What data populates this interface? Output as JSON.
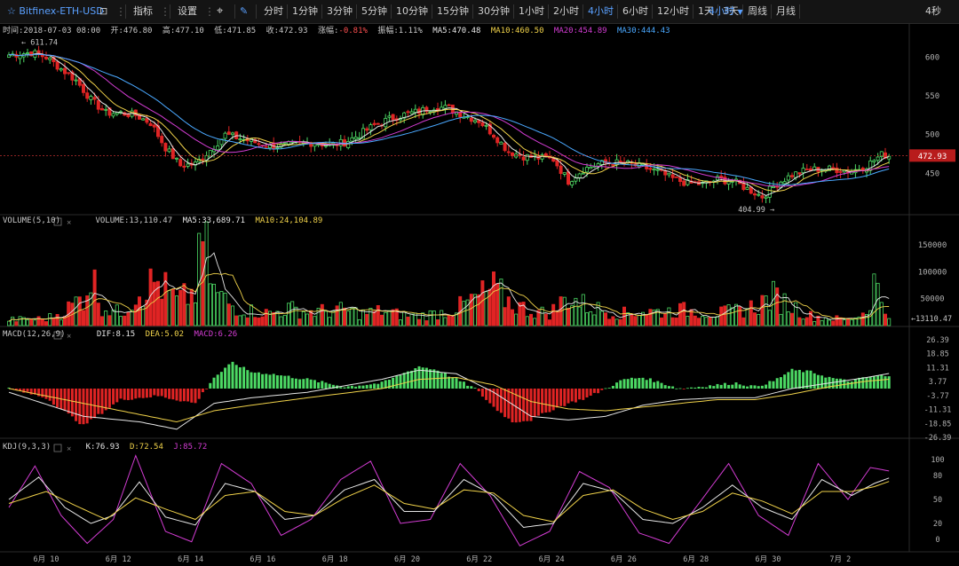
{
  "toolbar": {
    "symbol": "Bitfinex-ETH-USD",
    "indicators_label": "指标",
    "settings_label": "设置",
    "intervals": [
      "分时",
      "1分钟",
      "3分钟",
      "5分钟",
      "10分钟",
      "15分钟",
      "30分钟",
      "1小时",
      "2小时",
      "4小时",
      "6小时",
      "12小时",
      "1天",
      "3天",
      "周线",
      "月线"
    ],
    "active_interval": "4小时",
    "interval_dropdown": "4小时",
    "refresh": "4秒",
    "colors": {
      "active": "#5aa0ff",
      "bg": "#141414"
    }
  },
  "info_bar": {
    "time": "时间:2018-07-03 08:00",
    "open": "开:476.80",
    "high": "高:477.10",
    "low": "低:471.85",
    "close": "收:472.93",
    "change_label": "涨幅:",
    "change_value": "-0.81%",
    "amplitude": "振幅:1.11%",
    "ma5": "MA5:470.48",
    "ma10": "MA10:460.50",
    "ma20": "MA20:454.89",
    "ma30": "MA30:444.43"
  },
  "volume_bar": {
    "title": "VOLUME(5,10)",
    "volume": "VOLUME:13,110.47",
    "ma5": "MA5:33,689.71",
    "ma10": "MA10:24,104.89"
  },
  "macd_bar": {
    "title": "MACD(12,26,9)",
    "dif": "DIF:8.15",
    "dea": "DEA:5.02",
    "macd": "MACD:6.26"
  },
  "kdj_bar": {
    "title": "KDJ(9,3,3)",
    "k": "K:76.93",
    "d": "D:72.54",
    "j": "J:85.72"
  },
  "chart_data": {
    "type": "candlestick",
    "instrument": "Bitfinex-ETH-USD",
    "interval": "4小时",
    "x_ticks": [
      "6月 10",
      "6月 12",
      "6月 14",
      "6月 16",
      "6月 18",
      "6月 20",
      "6月 22",
      "6月 24",
      "6月 26",
      "6月 28",
      "6月 30",
      "7月 2"
    ],
    "price_axis": [
      600,
      550,
      500,
      450
    ],
    "price_ylim": [
      400,
      620
    ],
    "last_price": "472.93",
    "annotations": {
      "high": "611.74",
      "low": "404.99"
    },
    "volume_axis": [
      "150000",
      "100000",
      "50000"
    ],
    "volume_ylim": [
      0,
      185000
    ],
    "volume_last": "13110.47",
    "macd_axis": [
      "26.39",
      "18.85",
      "11.31",
      "3.77",
      "-3.77",
      "-11.31",
      "-18.85",
      "-26.39"
    ],
    "macd_ylim": [
      -26.39,
      26.39
    ],
    "kdj_axis": [
      100,
      80,
      50,
      20,
      0
    ],
    "kdj_ylim": [
      -10,
      110
    ],
    "close_anchors": [
      [
        0,
        603
      ],
      [
        6,
        606
      ],
      [
        10,
        600
      ],
      [
        14,
        585
      ],
      [
        18,
        570
      ],
      [
        22,
        545
      ],
      [
        26,
        528
      ],
      [
        30,
        528
      ],
      [
        34,
        525
      ],
      [
        38,
        515
      ],
      [
        42,
        483
      ],
      [
        46,
        460
      ],
      [
        50,
        462
      ],
      [
        54,
        480
      ],
      [
        58,
        500
      ],
      [
        62,
        495
      ],
      [
        66,
        490
      ],
      [
        70,
        485
      ],
      [
        74,
        486
      ],
      [
        78,
        488
      ],
      [
        82,
        490
      ],
      [
        86,
        486
      ],
      [
        90,
        490
      ],
      [
        94,
        500
      ],
      [
        98,
        512
      ],
      [
        102,
        520
      ],
      [
        106,
        526
      ],
      [
        110,
        530
      ],
      [
        114,
        536
      ],
      [
        118,
        534
      ],
      [
        122,
        525
      ],
      [
        126,
        518
      ],
      [
        130,
        500
      ],
      [
        134,
        478
      ],
      [
        138,
        472
      ],
      [
        142,
        470
      ],
      [
        146,
        468
      ],
      [
        150,
        440
      ],
      [
        154,
        455
      ],
      [
        158,
        462
      ],
      [
        162,
        464
      ],
      [
        166,
        462
      ],
      [
        170,
        458
      ],
      [
        174,
        452
      ],
      [
        178,
        443
      ],
      [
        182,
        437
      ],
      [
        186,
        436
      ],
      [
        190,
        442
      ],
      [
        194,
        440
      ],
      [
        198,
        430
      ],
      [
        202,
        420
      ],
      [
        206,
        437
      ],
      [
        210,
        448
      ],
      [
        214,
        454
      ],
      [
        218,
        456
      ],
      [
        222,
        455
      ],
      [
        226,
        453
      ],
      [
        230,
        460
      ],
      [
        234,
        474
      ],
      [
        236,
        473
      ]
    ],
    "volume_anchors": [
      [
        0,
        12000
      ],
      [
        10,
        14000
      ],
      [
        15,
        30000
      ],
      [
        20,
        60000
      ],
      [
        22,
        105000
      ],
      [
        25,
        40000
      ],
      [
        30,
        25000
      ],
      [
        35,
        75000
      ],
      [
        40,
        90000
      ],
      [
        45,
        50000
      ],
      [
        50,
        68000
      ],
      [
        52,
        180000
      ],
      [
        55,
        70000
      ],
      [
        60,
        40000
      ],
      [
        65,
        30000
      ],
      [
        70,
        25000
      ],
      [
        75,
        35000
      ],
      [
        80,
        28000
      ],
      [
        85,
        30000
      ],
      [
        90,
        32000
      ],
      [
        95,
        25000
      ],
      [
        100,
        30000
      ],
      [
        105,
        22000
      ],
      [
        110,
        20000
      ],
      [
        115,
        25000
      ],
      [
        120,
        35000
      ],
      [
        125,
        55000
      ],
      [
        130,
        75000
      ],
      [
        135,
        45000
      ],
      [
        140,
        30000
      ],
      [
        145,
        25000
      ],
      [
        150,
        60000
      ],
      [
        155,
        40000
      ],
      [
        160,
        30000
      ],
      [
        165,
        25000
      ],
      [
        170,
        30000
      ],
      [
        175,
        28000
      ],
      [
        180,
        32000
      ],
      [
        185,
        30000
      ],
      [
        190,
        25000
      ],
      [
        195,
        30000
      ],
      [
        200,
        40000
      ],
      [
        205,
        60000
      ],
      [
        210,
        40000
      ],
      [
        215,
        20000
      ],
      [
        220,
        15000
      ],
      [
        225,
        12000
      ],
      [
        230,
        30000
      ],
      [
        232,
        90000
      ],
      [
        236,
        13000
      ]
    ],
    "macd_anchors": [
      [
        0,
        0
      ],
      [
        10,
        -5
      ],
      [
        20,
        -20
      ],
      [
        30,
        -6
      ],
      [
        40,
        -4
      ],
      [
        50,
        -8
      ],
      [
        55,
        6
      ],
      [
        60,
        14
      ],
      [
        65,
        9
      ],
      [
        70,
        8
      ],
      [
        80,
        5
      ],
      [
        90,
        1
      ],
      [
        100,
        3
      ],
      [
        110,
        12
      ],
      [
        115,
        10
      ],
      [
        120,
        5
      ],
      [
        125,
        0
      ],
      [
        130,
        -10
      ],
      [
        135,
        -18
      ],
      [
        140,
        -17
      ],
      [
        145,
        -12
      ],
      [
        150,
        -8
      ],
      [
        155,
        -5
      ],
      [
        160,
        0
      ],
      [
        165,
        5
      ],
      [
        170,
        6
      ],
      [
        175,
        3
      ],
      [
        180,
        0
      ],
      [
        185,
        1
      ],
      [
        190,
        2
      ],
      [
        195,
        3
      ],
      [
        200,
        1
      ],
      [
        205,
        4
      ],
      [
        210,
        10
      ],
      [
        215,
        9
      ],
      [
        220,
        6
      ],
      [
        225,
        4
      ],
      [
        230,
        6
      ],
      [
        234,
        7
      ],
      [
        236,
        6.26
      ]
    ],
    "dif_anchors": [
      [
        0,
        -2
      ],
      [
        20,
        -15
      ],
      [
        35,
        -18
      ],
      [
        45,
        -22
      ],
      [
        55,
        -8
      ],
      [
        65,
        -5
      ],
      [
        80,
        -2
      ],
      [
        100,
        5
      ],
      [
        110,
        10
      ],
      [
        120,
        8
      ],
      [
        130,
        -2
      ],
      [
        140,
        -15
      ],
      [
        150,
        -17
      ],
      [
        160,
        -15
      ],
      [
        170,
        -9
      ],
      [
        180,
        -6
      ],
      [
        190,
        -5
      ],
      [
        200,
        -5
      ],
      [
        210,
        0
      ],
      [
        220,
        3
      ],
      [
        230,
        6
      ],
      [
        236,
        8.15
      ]
    ],
    "dea_anchors": [
      [
        0,
        0
      ],
      [
        20,
        -8
      ],
      [
        35,
        -14
      ],
      [
        45,
        -18
      ],
      [
        55,
        -12
      ],
      [
        65,
        -9
      ],
      [
        80,
        -5
      ],
      [
        100,
        0
      ],
      [
        110,
        5
      ],
      [
        120,
        6
      ],
      [
        130,
        2
      ],
      [
        140,
        -7
      ],
      [
        150,
        -11
      ],
      [
        160,
        -12
      ],
      [
        170,
        -10
      ],
      [
        180,
        -8
      ],
      [
        190,
        -6
      ],
      [
        200,
        -6
      ],
      [
        210,
        -3
      ],
      [
        220,
        1
      ],
      [
        230,
        4
      ],
      [
        236,
        5.02
      ]
    ],
    "kdj_k_anchors": [
      [
        0,
        50
      ],
      [
        8,
        78
      ],
      [
        15,
        40
      ],
      [
        22,
        20
      ],
      [
        28,
        30
      ],
      [
        35,
        72
      ],
      [
        42,
        28
      ],
      [
        50,
        18
      ],
      [
        58,
        70
      ],
      [
        66,
        60
      ],
      [
        74,
        25
      ],
      [
        82,
        30
      ],
      [
        90,
        62
      ],
      [
        98,
        75
      ],
      [
        106,
        35
      ],
      [
        114,
        35
      ],
      [
        122,
        75
      ],
      [
        130,
        55
      ],
      [
        138,
        15
      ],
      [
        146,
        20
      ],
      [
        154,
        70
      ],
      [
        162,
        60
      ],
      [
        170,
        25
      ],
      [
        178,
        20
      ],
      [
        186,
        40
      ],
      [
        194,
        68
      ],
      [
        202,
        40
      ],
      [
        210,
        25
      ],
      [
        218,
        75
      ],
      [
        226,
        55
      ],
      [
        232,
        70
      ],
      [
        236,
        76.93
      ]
    ],
    "kdj_d_anchors": [
      [
        0,
        45
      ],
      [
        10,
        60
      ],
      [
        18,
        42
      ],
      [
        26,
        25
      ],
      [
        34,
        52
      ],
      [
        42,
        38
      ],
      [
        50,
        25
      ],
      [
        58,
        55
      ],
      [
        66,
        60
      ],
      [
        74,
        35
      ],
      [
        82,
        30
      ],
      [
        90,
        52
      ],
      [
        98,
        68
      ],
      [
        106,
        45
      ],
      [
        114,
        38
      ],
      [
        122,
        62
      ],
      [
        130,
        58
      ],
      [
        138,
        30
      ],
      [
        146,
        22
      ],
      [
        154,
        55
      ],
      [
        162,
        62
      ],
      [
        170,
        38
      ],
      [
        178,
        25
      ],
      [
        186,
        35
      ],
      [
        194,
        58
      ],
      [
        202,
        48
      ],
      [
        210,
        32
      ],
      [
        218,
        60
      ],
      [
        226,
        60
      ],
      [
        232,
        66
      ],
      [
        236,
        72.54
      ]
    ],
    "kdj_j_anchors": [
      [
        0,
        40
      ],
      [
        7,
        92
      ],
      [
        14,
        30
      ],
      [
        21,
        -5
      ],
      [
        28,
        25
      ],
      [
        34,
        105
      ],
      [
        42,
        10
      ],
      [
        49,
        -3
      ],
      [
        57,
        95
      ],
      [
        65,
        70
      ],
      [
        73,
        5
      ],
      [
        81,
        25
      ],
      [
        89,
        75
      ],
      [
        97,
        98
      ],
      [
        105,
        20
      ],
      [
        113,
        25
      ],
      [
        121,
        95
      ],
      [
        129,
        55
      ],
      [
        137,
        -8
      ],
      [
        145,
        10
      ],
      [
        153,
        85
      ],
      [
        161,
        65
      ],
      [
        169,
        8
      ],
      [
        177,
        -5
      ],
      [
        185,
        45
      ],
      [
        193,
        95
      ],
      [
        201,
        30
      ],
      [
        209,
        5
      ],
      [
        217,
        95
      ],
      [
        225,
        50
      ],
      [
        231,
        90
      ],
      [
        236,
        85.72
      ]
    ]
  }
}
